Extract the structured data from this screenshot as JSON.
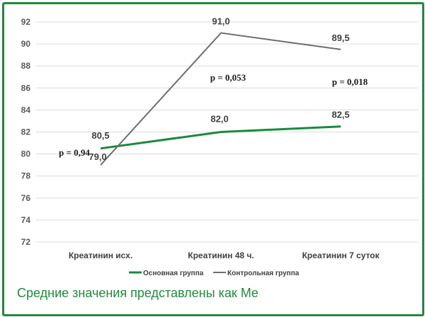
{
  "chart_data": {
    "type": "line",
    "categories": [
      "Креатинин исх.",
      "Креатинин 48 ч.",
      "Креатинин 7 суток"
    ],
    "ylim": [
      72,
      92
    ],
    "yticks": [
      72,
      74,
      76,
      78,
      80,
      82,
      84,
      86,
      88,
      90,
      92
    ],
    "grid": true,
    "legend_position": "bottom",
    "series": [
      {
        "name": "Основная группа",
        "color": "#1a8a3a",
        "values": [
          80.5,
          82.0,
          82.5
        ],
        "labels": [
          "80,5",
          "82,0",
          "82,5"
        ]
      },
      {
        "name": "Контрольная группа",
        "color": "#6e6e6e",
        "values": [
          79.0,
          91.0,
          89.5
        ],
        "labels": [
          "79,0",
          "91,0",
          "89,5"
        ]
      }
    ],
    "annotations": [
      "p = 0,94",
      "p = 0,053",
      "p = 0,018"
    ]
  },
  "footnote": "Средние значения представлены как Me"
}
